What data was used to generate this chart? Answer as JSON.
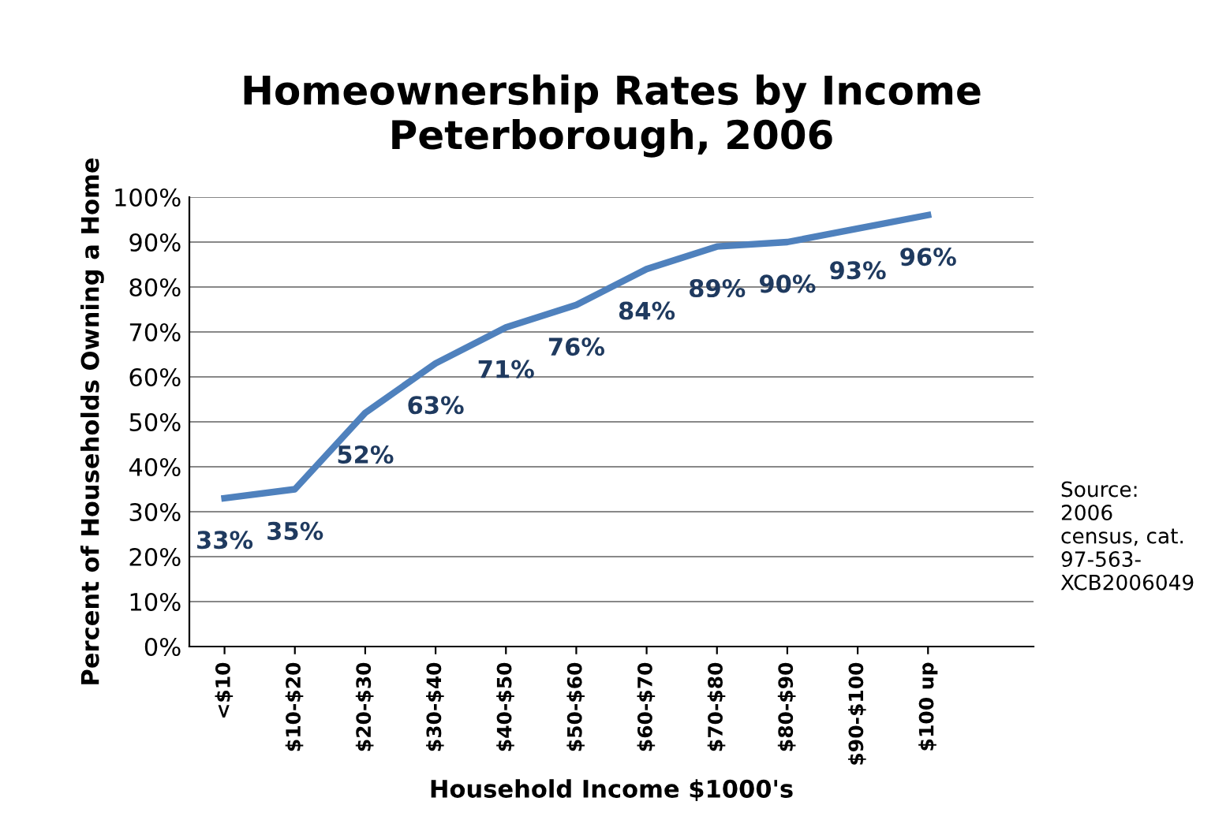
{
  "chart_data": {
    "type": "line",
    "title": "Homeownership Rates by Income\nPeterborough, 2006",
    "xlabel": "Household Income $1000's",
    "ylabel": "Percent of Households Owning a Home",
    "categories": [
      "<$10",
      "$10-$20",
      "$20-$30",
      "$30-$40",
      "$40-$50",
      "$50-$60",
      "$60-$70",
      "$70-$80",
      "$80-$90",
      "$90-$100",
      "$100 up"
    ],
    "series": [
      {
        "color": "#4f81bd",
        "values": [
          33,
          35,
          52,
          63,
          71,
          76,
          84,
          89,
          90,
          93,
          96
        ],
        "value_labels": [
          "33%",
          "35%",
          "52%",
          "63%",
          "71%",
          "76%",
          "84%",
          "89%",
          "90%",
          "93%",
          "96%"
        ]
      }
    ],
    "ylim": [
      0,
      100
    ],
    "yticks": [
      {
        "value": 0,
        "label": "0%"
      },
      {
        "value": 10,
        "label": "10%"
      },
      {
        "value": 20,
        "label": "20%"
      },
      {
        "value": 30,
        "label": "30%"
      },
      {
        "value": 40,
        "label": "40%"
      },
      {
        "value": 50,
        "label": "50%"
      },
      {
        "value": 60,
        "label": "60%"
      },
      {
        "value": 70,
        "label": "70%"
      },
      {
        "value": 80,
        "label": "80%"
      },
      {
        "value": 90,
        "label": "90%"
      },
      {
        "value": 100,
        "label": "100%"
      }
    ],
    "grid": "y",
    "marker": "none",
    "line_style": "solid",
    "annotations": [
      "Source:\n2006\ncensus, cat.\n97-563-\nXCB2006049"
    ]
  }
}
